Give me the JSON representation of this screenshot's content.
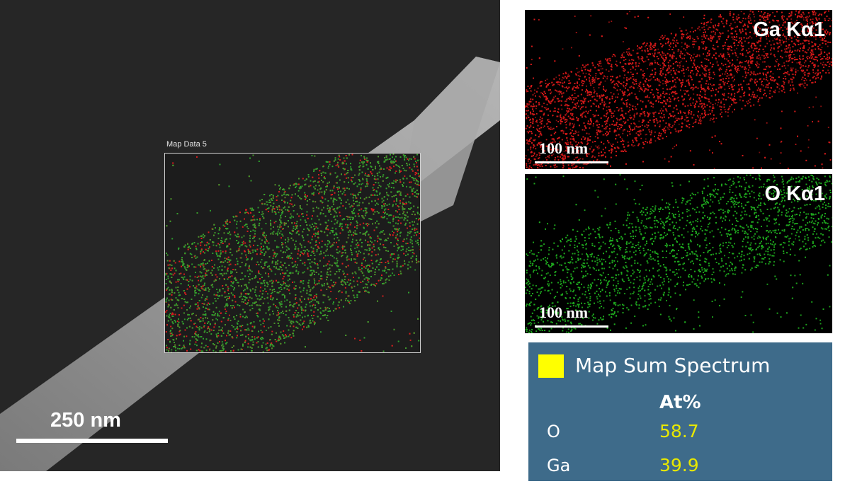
{
  "sem_image": {
    "map_label": "Map Data 5",
    "scale_label": "250 nm",
    "colors": {
      "background": "#262626",
      "wire": "#8c8c8c",
      "ga": "#d81f1f",
      "o": "#2fa52f"
    }
  },
  "ga_map": {
    "label": "Ga Kα1",
    "scale_label": "100 nm",
    "color": "#d41a1a"
  },
  "o_map": {
    "label": "O Kα1",
    "scale_label": "100 nm",
    "color": "#1fa81f"
  },
  "spectrum": {
    "title": "Map Sum Spectrum",
    "column_header": "At%",
    "swatch_color": "#ffff00",
    "rows": [
      {
        "element": "O",
        "value": "58.7"
      },
      {
        "element": "Ga",
        "value": "39.9"
      }
    ]
  }
}
